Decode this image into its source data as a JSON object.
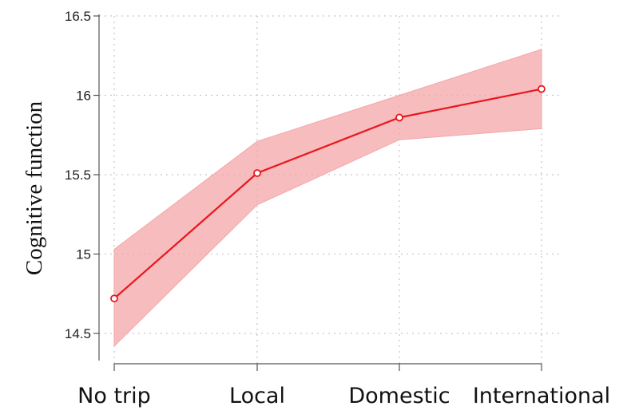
{
  "chart_data": {
    "type": "line",
    "title": "",
    "xlabel": "",
    "ylabel": "Cognitive function",
    "categories": [
      "No trip",
      "Local",
      "Domestic",
      "International"
    ],
    "series": [
      {
        "values": [
          14.72,
          15.51,
          15.86,
          16.04
        ],
        "ci_lower": [
          14.42,
          15.31,
          15.72,
          15.79
        ],
        "ci_upper": [
          15.03,
          15.71,
          16.0,
          16.29
        ],
        "color": "#e8171d",
        "band_color": "#f4a6a8"
      }
    ],
    "yticks": [
      "14.5",
      "15",
      "15.5",
      "16",
      "16.5"
    ],
    "ylim": [
      14.5,
      16.5
    ],
    "grid": true,
    "grid_style": "dotted",
    "legend": "none"
  }
}
